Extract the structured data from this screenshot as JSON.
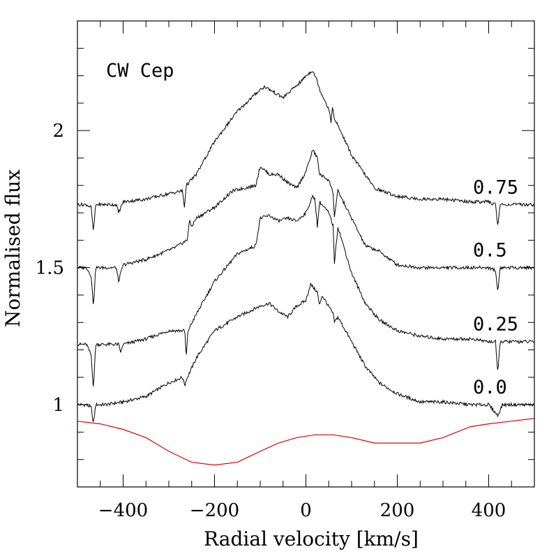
{
  "chart_data": {
    "type": "line",
    "title": "",
    "annotation": "CW Cep",
    "xlabel": "Radial velocity [km/s]",
    "ylabel": "Normalised flux",
    "xlim": [
      -500,
      500
    ],
    "ylim": [
      0.7,
      2.4
    ],
    "x_ticks": [
      {
        "value": -400,
        "label": "−400"
      },
      {
        "value": -200,
        "label": "−200"
      },
      {
        "value": 0,
        "label": "0"
      },
      {
        "value": 200,
        "label": "200"
      },
      {
        "value": 400,
        "label": "400"
      }
    ],
    "y_ticks": [
      {
        "value": 1,
        "label": "1"
      },
      {
        "value": 1.5,
        "label": "1.5"
      },
      {
        "value": 2,
        "label": "2"
      }
    ],
    "grid": false,
    "colors": {
      "spectra": "#000000",
      "model": "#e00000"
    },
    "series": [
      {
        "phase_label": "0.0",
        "x": [
          -500,
          -480,
          -470,
          -465,
          -460,
          -440,
          -400,
          -350,
          -300,
          -270,
          -265,
          -262,
          -240,
          -200,
          -150,
          -100,
          -80,
          -60,
          -40,
          -20,
          0,
          10,
          15,
          25,
          30,
          35,
          60,
          62,
          70,
          100,
          130,
          160,
          200,
          250,
          300,
          360,
          400,
          420,
          430,
          460,
          500
        ],
        "y": [
          1.0,
          1.0,
          0.99,
          0.93,
          1.0,
          1.0,
          1.01,
          1.03,
          1.08,
          1.1,
          1.07,
          1.09,
          1.17,
          1.27,
          1.32,
          1.36,
          1.37,
          1.34,
          1.32,
          1.36,
          1.38,
          1.44,
          1.43,
          1.41,
          1.36,
          1.4,
          1.33,
          1.3,
          1.32,
          1.23,
          1.14,
          1.08,
          1.04,
          1.01,
          1.01,
          1.0,
          1.0,
          0.96,
          1.0,
          1.0,
          1.0
        ]
      },
      {
        "phase_label": "0.25",
        "x": [
          -500,
          -480,
          -470,
          -465,
          -460,
          -440,
          -410,
          -405,
          -400,
          -350,
          -300,
          -265,
          -262,
          -258,
          -240,
          -200,
          -150,
          -110,
          -100,
          -80,
          -60,
          -40,
          -20,
          0,
          15,
          20,
          25,
          30,
          50,
          60,
          62,
          70,
          100,
          130,
          160,
          200,
          250,
          300,
          360,
          400,
          415,
          420,
          425,
          450,
          500
        ],
        "y": [
          1.22,
          1.22,
          1.18,
          1.06,
          1.22,
          1.22,
          1.22,
          1.19,
          1.22,
          1.24,
          1.27,
          1.27,
          1.17,
          1.27,
          1.33,
          1.45,
          1.55,
          1.58,
          1.68,
          1.69,
          1.67,
          1.68,
          1.67,
          1.7,
          1.76,
          1.75,
          1.65,
          1.74,
          1.7,
          1.65,
          1.51,
          1.65,
          1.48,
          1.37,
          1.31,
          1.27,
          1.25,
          1.24,
          1.24,
          1.23,
          1.23,
          1.11,
          1.23,
          1.23,
          1.23
        ]
      },
      {
        "phase_label": "0.5",
        "x": [
          -500,
          -480,
          -470,
          -465,
          -460,
          -440,
          -415,
          -410,
          -400,
          -350,
          -290,
          -260,
          -255,
          -250,
          -240,
          -200,
          -160,
          -110,
          -100,
          -80,
          -60,
          -40,
          -20,
          0,
          15,
          25,
          30,
          50,
          60,
          62,
          70,
          100,
          130,
          160,
          200,
          250,
          300,
          360,
          400,
          415,
          420,
          425,
          450,
          500
        ],
        "y": [
          1.5,
          1.5,
          1.47,
          1.36,
          1.5,
          1.5,
          1.5,
          1.45,
          1.51,
          1.53,
          1.57,
          1.6,
          1.67,
          1.65,
          1.68,
          1.72,
          1.78,
          1.8,
          1.87,
          1.84,
          1.84,
          1.81,
          1.79,
          1.85,
          1.93,
          1.9,
          1.84,
          1.82,
          1.77,
          1.68,
          1.78,
          1.68,
          1.58,
          1.56,
          1.51,
          1.5,
          1.5,
          1.5,
          1.5,
          1.49,
          1.41,
          1.5,
          1.5,
          1.5
        ]
      },
      {
        "phase_label": "0.75",
        "x": [
          -500,
          -480,
          -470,
          -465,
          -460,
          -440,
          -415,
          -410,
          -400,
          -350,
          -300,
          -270,
          -266,
          -262,
          -240,
          -200,
          -150,
          -100,
          -90,
          -70,
          -50,
          -30,
          -10,
          0,
          15,
          25,
          30,
          50,
          55,
          58,
          62,
          70,
          100,
          150,
          200,
          250,
          300,
          360,
          400,
          415,
          420,
          425,
          450,
          500
        ],
        "y": [
          1.73,
          1.73,
          1.72,
          1.63,
          1.73,
          1.73,
          1.73,
          1.7,
          1.74,
          1.75,
          1.77,
          1.78,
          1.72,
          1.8,
          1.84,
          1.96,
          2.07,
          2.15,
          2.16,
          2.14,
          2.12,
          2.15,
          2.18,
          2.2,
          2.22,
          2.18,
          2.15,
          2.08,
          2.03,
          2.09,
          2.04,
          2.02,
          1.91,
          1.79,
          1.76,
          1.75,
          1.75,
          1.74,
          1.74,
          1.73,
          1.65,
          1.73,
          1.73,
          1.73
        ]
      },
      {
        "phase_label": "",
        "x": [
          -500,
          -450,
          -400,
          -350,
          -300,
          -250,
          -200,
          -150,
          -100,
          -60,
          -20,
          20,
          60,
          100,
          150,
          200,
          250,
          300,
          330,
          360,
          400,
          450,
          500
        ],
        "y": [
          0.94,
          0.93,
          0.91,
          0.88,
          0.83,
          0.79,
          0.78,
          0.79,
          0.83,
          0.86,
          0.88,
          0.89,
          0.89,
          0.88,
          0.86,
          0.86,
          0.86,
          0.88,
          0.9,
          0.92,
          0.93,
          0.94,
          0.95
        ]
      }
    ]
  }
}
